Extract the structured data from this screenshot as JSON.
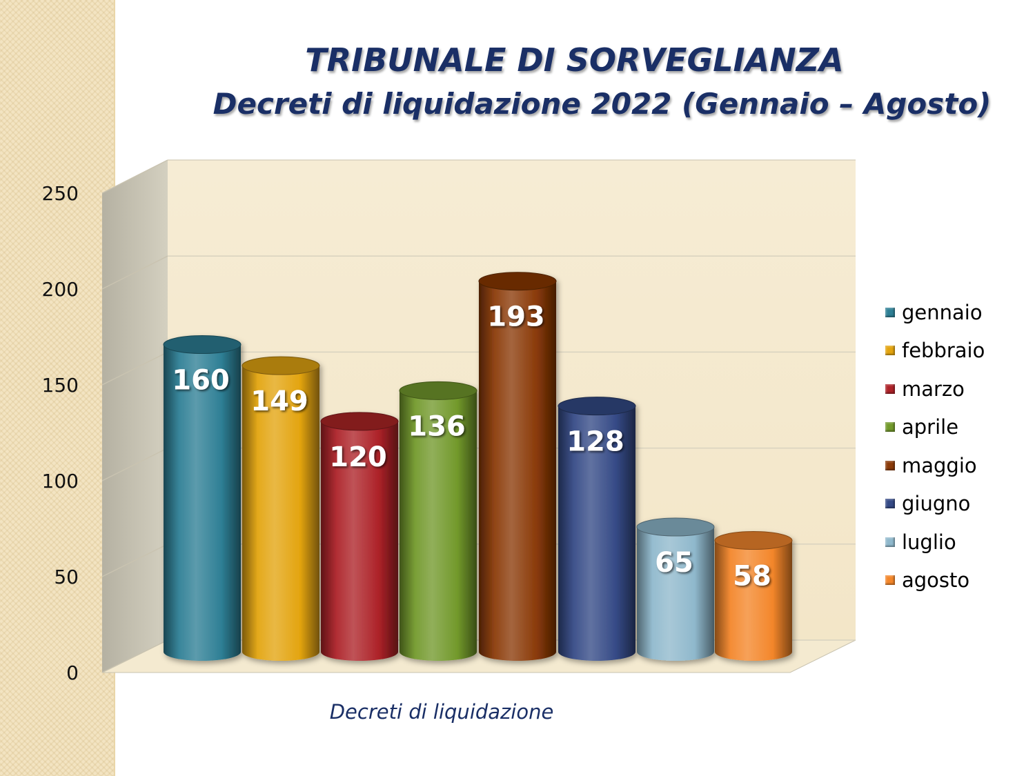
{
  "title_line1": "TRIBUNALE DI SORVEGLIANZA",
  "title_line2": "Decreti di liquidazione 2022 (Gennaio – Agosto)",
  "chart_data": {
    "type": "bar",
    "title": "TRIBUNALE DI SORVEGLIANZA — Decreti di liquidazione 2022 (Gennaio – Agosto)",
    "xlabel": "Decreti di liquidazione",
    "ylabel": "",
    "ylim": [
      0,
      250
    ],
    "yticks": [
      0,
      50,
      100,
      150,
      200,
      250
    ],
    "grid": true,
    "legend_position": "right",
    "categories": [
      "gennaio",
      "febbraio",
      "marzo",
      "aprile",
      "maggio",
      "giugno",
      "luglio",
      "agosto"
    ],
    "values": [
      160,
      149,
      120,
      136,
      193,
      128,
      65,
      58
    ],
    "colors": [
      "#2e7f95",
      "#e3a40f",
      "#ad2228",
      "#72992b",
      "#8a3a08",
      "#354a86",
      "#8fb8cc",
      "#f3862a"
    ]
  }
}
